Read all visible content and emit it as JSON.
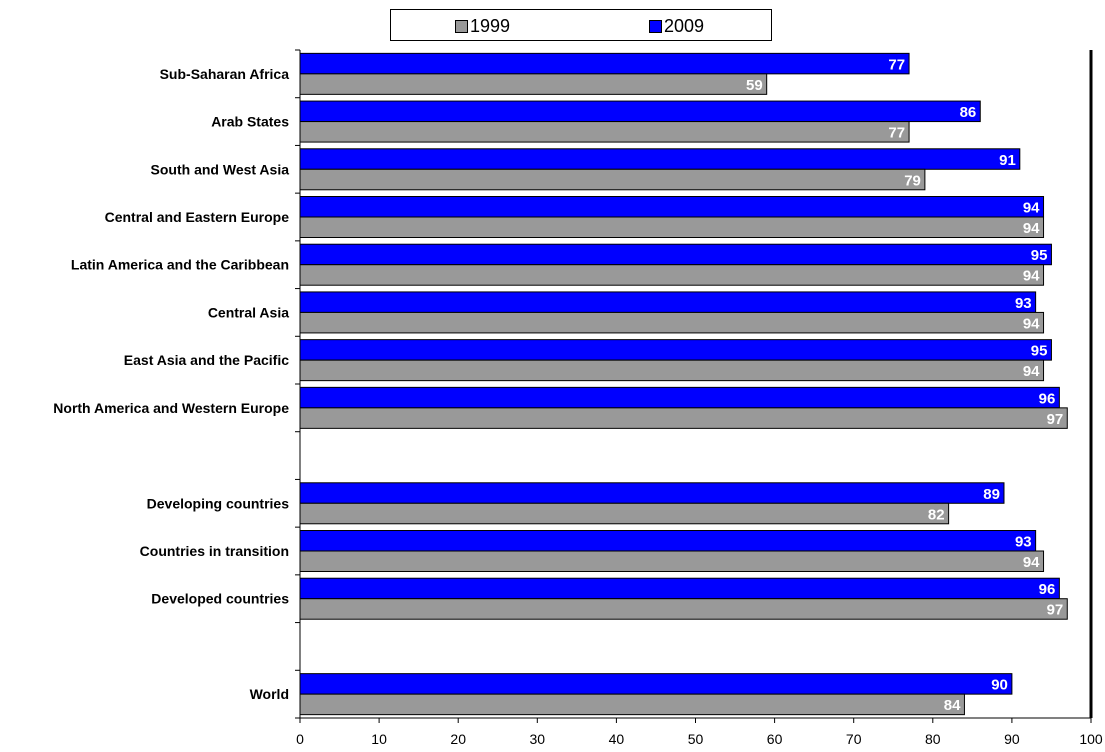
{
  "legend": {
    "items": [
      {
        "label": "1999",
        "color": "#999999"
      },
      {
        "label": "2009",
        "color": "#0000ff"
      }
    ]
  },
  "chart_data": {
    "type": "bar",
    "orientation": "horizontal",
    "categories": [
      "Sub-Saharan Africa",
      "Arab States",
      "South and West Asia",
      "Central and Eastern Europe",
      "Latin America and the Caribbean",
      "Central Asia",
      "East Asia and the Pacific",
      "North America and Western Europe",
      "",
      "Developing countries",
      "Countries in transition",
      "Developed countries",
      "",
      "World"
    ],
    "series": [
      {
        "name": "2009",
        "color": "#0000ff",
        "values": [
          77,
          86,
          91,
          94,
          95,
          93,
          95,
          96,
          null,
          89,
          93,
          96,
          null,
          90
        ],
        "labels": [
          "77",
          "86",
          "91",
          "94",
          "95",
          "93",
          "95",
          "96",
          "",
          "89",
          "93",
          "96",
          "",
          "90"
        ]
      },
      {
        "name": "1999",
        "color": "#999999",
        "values": [
          59,
          77,
          79,
          94,
          94,
          94,
          94,
          97,
          null,
          82,
          94,
          97,
          null,
          84
        ],
        "labels": [
          "59",
          "77",
          "79",
          "94",
          "94",
          "94",
          "94",
          "97",
          "",
          "82",
          "94",
          "97",
          "",
          "84"
        ]
      }
    ],
    "x_ticks": [
      "0",
      "10",
      "20",
      "30",
      "40",
      "50",
      "60",
      "70",
      "80",
      "90",
      "100"
    ],
    "xlim": [
      0,
      100
    ],
    "grid": false,
    "legend_position": "top-center"
  }
}
